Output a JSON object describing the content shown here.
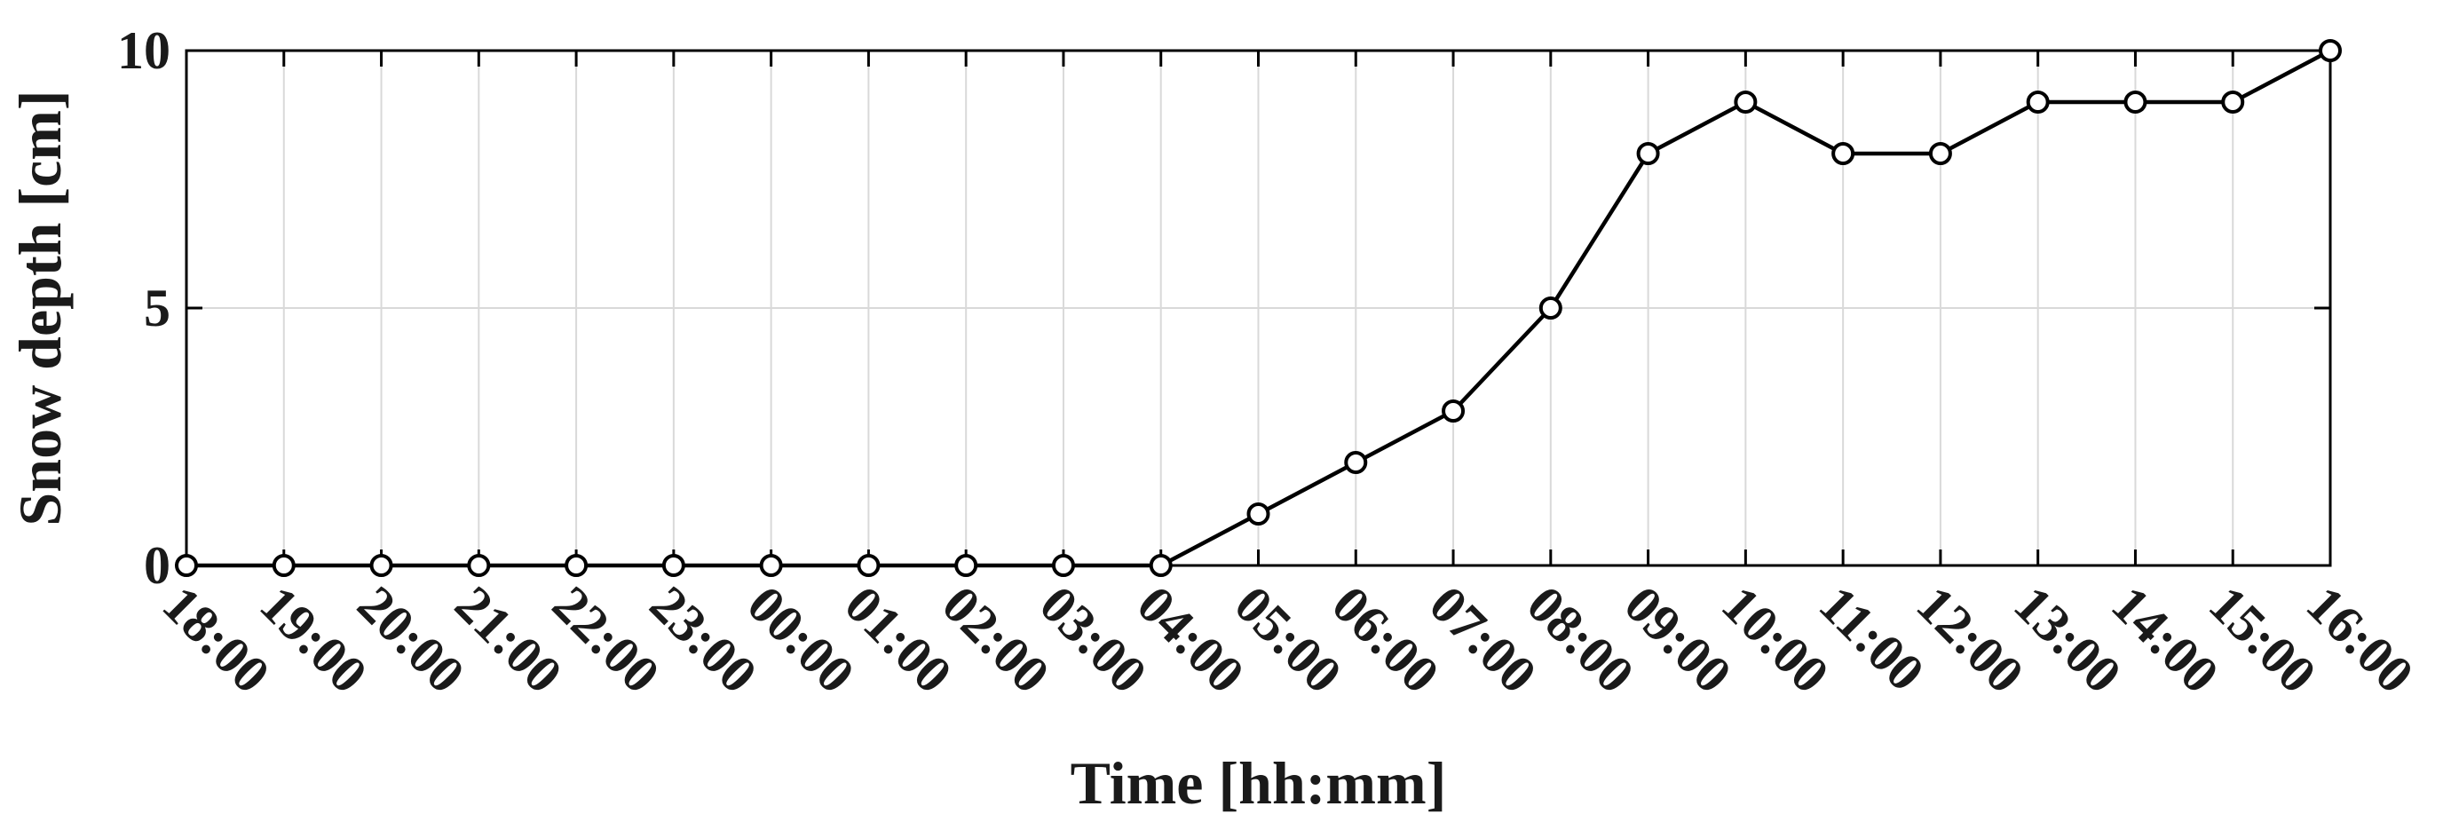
{
  "chart_data": {
    "type": "line",
    "title": "",
    "xlabel": "Time [hh:mm]",
    "ylabel": "Snow depth [cm]",
    "ylim": [
      0,
      10
    ],
    "yticks": [
      "0",
      "5",
      "10"
    ],
    "grid": true,
    "categories": [
      "18:00",
      "19:00",
      "20:00",
      "21:00",
      "22:00",
      "23:00",
      "00:00",
      "01:00",
      "02:00",
      "03:00",
      "04:00",
      "05:00",
      "06:00",
      "07:00",
      "08:00",
      "09:00",
      "10:00",
      "11:00",
      "12:00",
      "13:00",
      "14:00",
      "15:00",
      "16:00"
    ],
    "series": [
      {
        "values": [
          0,
          0,
          0,
          0,
          0,
          0,
          0,
          0,
          0,
          0,
          0,
          1,
          2,
          3,
          5,
          8,
          9,
          8,
          8,
          9,
          9,
          9,
          10
        ],
        "color": "#000000",
        "marker": "circle-open"
      }
    ]
  }
}
